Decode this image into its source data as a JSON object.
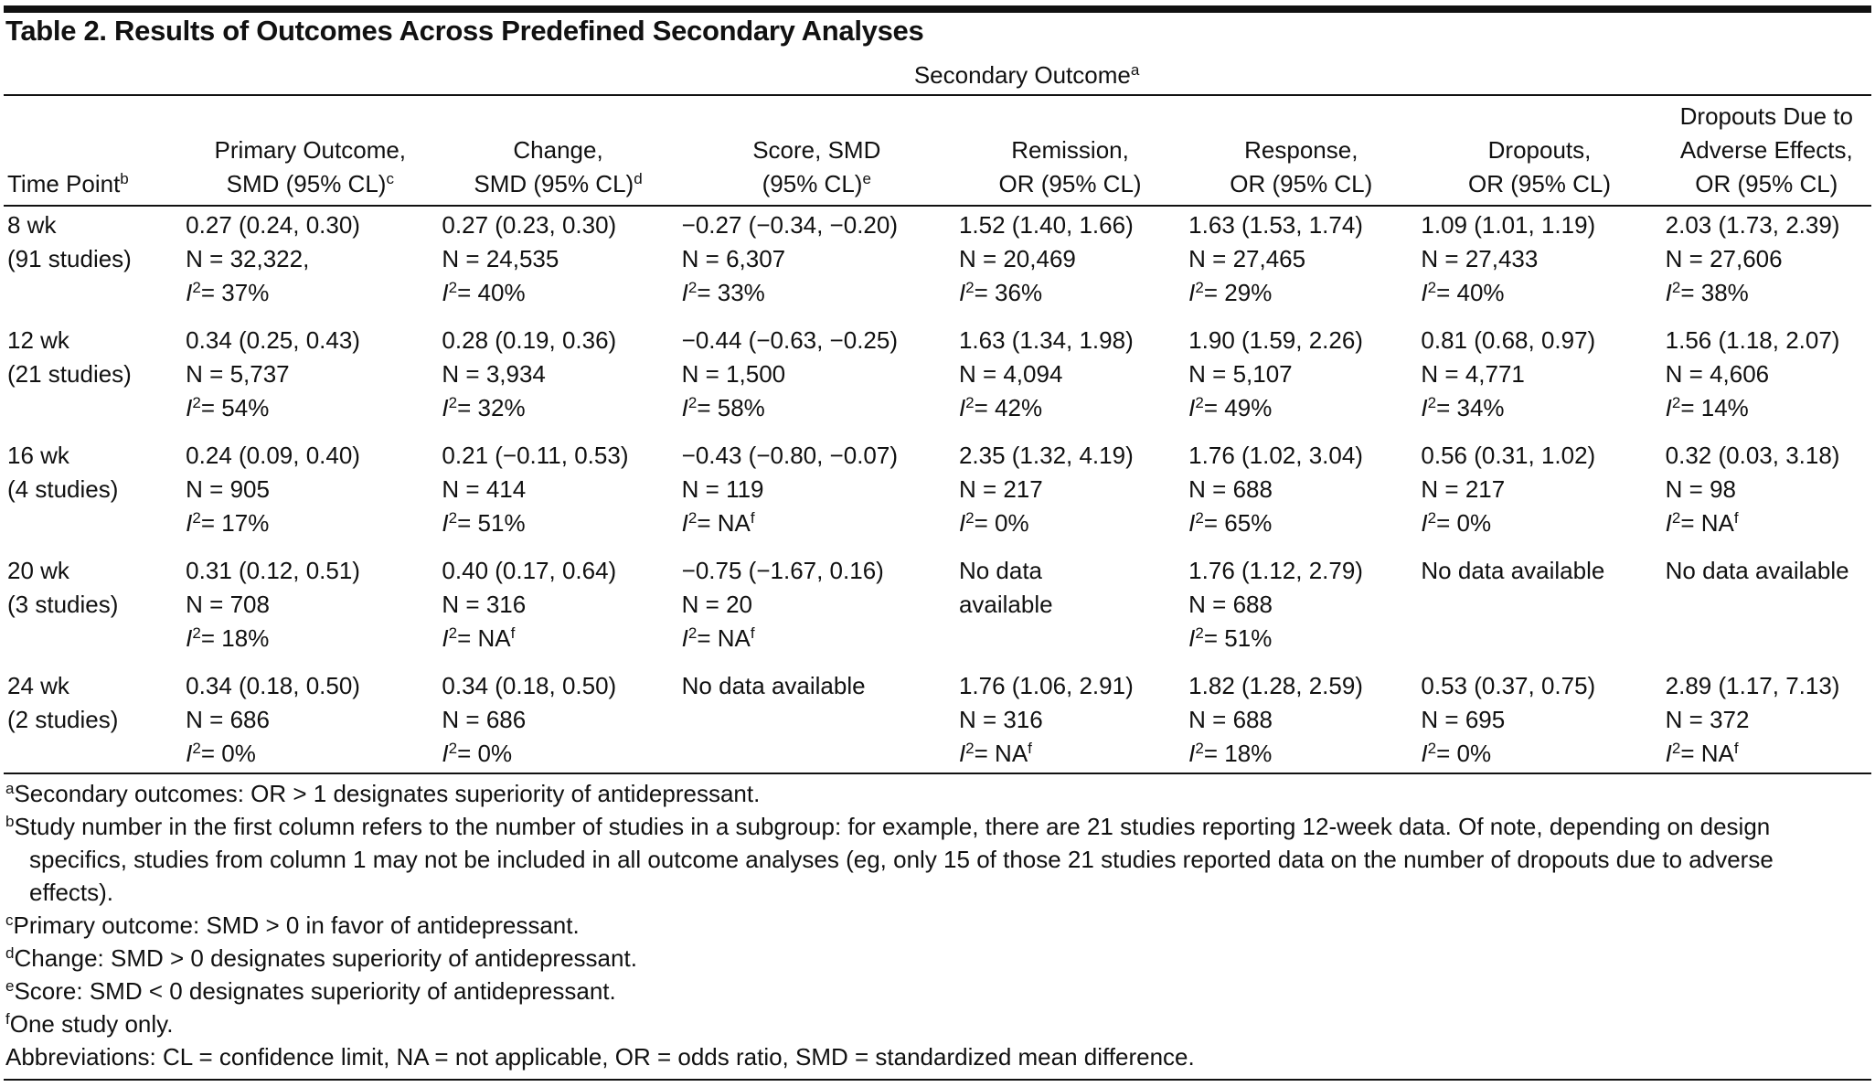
{
  "title": "Table 2. Results of Outcomes Across Predefined Secondary Analyses",
  "i2_symbol": "I",
  "i2_exponent": "2",
  "spanner": {
    "text": "Secondary Outcome",
    "note": "a"
  },
  "headers": [
    {
      "lines": [
        "Time Point"
      ],
      "note": "b"
    },
    {
      "lines": [
        "Primary Outcome,",
        "SMD (95% CL)"
      ],
      "note": "c"
    },
    {
      "lines": [
        "Change,",
        "SMD (95% CL)"
      ],
      "note": "d"
    },
    {
      "lines": [
        "Score, SMD",
        "(95% CL)"
      ],
      "note": "e"
    },
    {
      "lines": [
        "Remission,",
        "OR (95% CL)"
      ]
    },
    {
      "lines": [
        "Response,",
        "OR (95% CL)"
      ]
    },
    {
      "lines": [
        "Dropouts,",
        "OR (95% CL)"
      ]
    },
    {
      "lines": [
        "Dropouts Due to",
        "Adverse Effects,",
        "OR (95% CL)"
      ]
    }
  ],
  "rows": [
    {
      "time": "8 wk",
      "studies": "(91 studies)",
      "cells": [
        {
          "estimate": "0.27 (0.24, 0.30)",
          "n": "N = 32,322,",
          "i2": "= 37%"
        },
        {
          "estimate": "0.27 (0.23, 0.30)",
          "n": "N = 24,535",
          "i2": "= 40%"
        },
        {
          "estimate": "−0.27 (−0.34, −0.20)",
          "n": "N = 6,307",
          "i2": "= 33%"
        },
        {
          "estimate": "1.52 (1.40, 1.66)",
          "n": "N = 20,469",
          "i2": "= 36%"
        },
        {
          "estimate": "1.63 (1.53, 1.74)",
          "n": "N = 27,465",
          "i2": "= 29%"
        },
        {
          "estimate": "1.09 (1.01, 1.19)",
          "n": "N = 27,433",
          "i2": "= 40%"
        },
        {
          "estimate": "2.03 (1.73, 2.39)",
          "n": "N = 27,606",
          "i2": "= 38%"
        }
      ]
    },
    {
      "time": "12 wk",
      "studies": "(21 studies)",
      "cells": [
        {
          "estimate": "0.34 (0.25, 0.43)",
          "n": "N = 5,737",
          "i2": "= 54%"
        },
        {
          "estimate": "0.28 (0.19, 0.36)",
          "n": "N = 3,934",
          "i2": "= 32%"
        },
        {
          "estimate": "−0.44 (−0.63, −0.25)",
          "n": "N = 1,500",
          "i2": "= 58%"
        },
        {
          "estimate": "1.63 (1.34, 1.98)",
          "n": "N = 4,094",
          "i2": "= 42%"
        },
        {
          "estimate": "1.90 (1.59, 2.26)",
          "n": "N = 5,107",
          "i2": "= 49%"
        },
        {
          "estimate": "0.81 (0.68, 0.97)",
          "n": "N = 4,771",
          "i2": "= 34%"
        },
        {
          "estimate": "1.56 (1.18, 2.07)",
          "n": "N = 4,606",
          "i2": "= 14%"
        }
      ]
    },
    {
      "time": "16 wk",
      "studies": "(4 studies)",
      "cells": [
        {
          "estimate": "0.24 (0.09, 0.40)",
          "n": "N = 905",
          "i2": "= 17%"
        },
        {
          "estimate": "0.21 (−0.11, 0.53)",
          "n": "N = 414",
          "i2": "= 51%"
        },
        {
          "estimate": "−0.43 (−0.80, −0.07)",
          "n": "N = 119",
          "i2": "= NA",
          "i2_note": "f"
        },
        {
          "estimate": "2.35 (1.32, 4.19)",
          "n": "N = 217",
          "i2": "= 0%"
        },
        {
          "estimate": "1.76 (1.02, 3.04)",
          "n": "N = 688",
          "i2": "= 65%"
        },
        {
          "estimate": "0.56 (0.31, 1.02)",
          "n": "N = 217",
          "i2": "= 0%"
        },
        {
          "estimate": "0.32 (0.03, 3.18)",
          "n": "N = 98",
          "i2": "= NA",
          "i2_note": "f"
        }
      ]
    },
    {
      "time": "20 wk",
      "studies": "(3 studies)",
      "cells": [
        {
          "estimate": "0.31 (0.12, 0.51)",
          "n": "N = 708",
          "i2": "= 18%"
        },
        {
          "estimate": "0.40 (0.17, 0.64)",
          "n": "N = 316",
          "i2": "= NA",
          "i2_note": "f"
        },
        {
          "estimate": "−0.75 (−1.67, 0.16)",
          "n": "N = 20",
          "i2": "= NA",
          "i2_note": "f"
        },
        {
          "text": "No data available"
        },
        {
          "estimate": "1.76 (1.12, 2.79)",
          "n": "N = 688",
          "i2": "= 51%"
        },
        {
          "text": "No data available"
        },
        {
          "text": "No data available"
        }
      ]
    },
    {
      "time": "24 wk",
      "studies": "(2 studies)",
      "cells": [
        {
          "estimate": "0.34 (0.18, 0.50)",
          "n": "N = 686",
          "i2": "= 0%"
        },
        {
          "estimate": "0.34 (0.18, 0.50)",
          "n": "N = 686",
          "i2": "= 0%"
        },
        {
          "text": "No data available"
        },
        {
          "estimate": "1.76 (1.06, 2.91)",
          "n": "N = 316",
          "i2": "= NA",
          "i2_note": "f"
        },
        {
          "estimate": "1.82 (1.28, 2.59)",
          "n": "N = 688",
          "i2": "= 18%"
        },
        {
          "estimate": "0.53 (0.37, 0.75)",
          "n": "N = 695",
          "i2": "= 0%"
        },
        {
          "estimate": "2.89 (1.17, 7.13)",
          "n": "N = 372",
          "i2": "= NA",
          "i2_note": "f"
        }
      ]
    }
  ],
  "footnotes": [
    {
      "mark": "a",
      "text": "Secondary outcomes: OR > 1 designates superiority of antidepressant."
    },
    {
      "mark": "b",
      "text": "Study number in the first column refers to the number of studies in a subgroup: for example, there are 21 studies reporting 12-week data. Of note, depending on design specifics, studies from column 1 may not be included in all outcome analyses (eg, only 15 of those 21 studies reported data on the number of dropouts due to adverse effects)."
    },
    {
      "mark": "c",
      "text": "Primary outcome: SMD > 0 in favor of antidepressant."
    },
    {
      "mark": "d",
      "text": "Change: SMD > 0 designates superiority of antidepressant."
    },
    {
      "mark": "e",
      "text": "Score: SMD < 0 designates superiority of antidepressant."
    },
    {
      "mark": "f",
      "text": "One study only."
    },
    {
      "text": "Abbreviations: CL = confidence limit, NA = not applicable, OR = odds ratio, SMD = standardized mean difference."
    }
  ]
}
